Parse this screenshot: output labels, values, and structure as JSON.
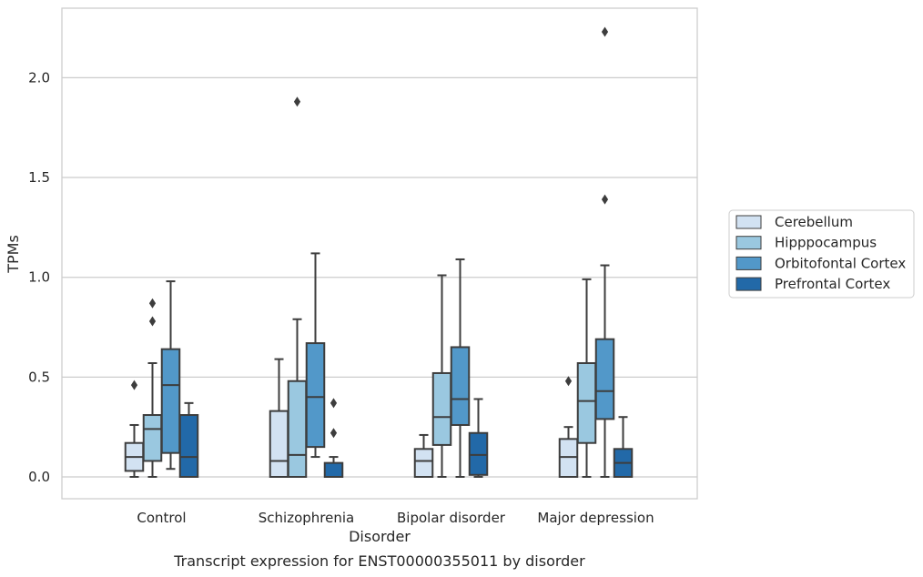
{
  "chart_data": {
    "type": "box",
    "title": "",
    "caption": "Transcript expression for ENST00000355011 by disorder",
    "xlabel": "Disorder",
    "ylabel": "TPMs",
    "ylim": [
      -0.11,
      2.34
    ],
    "yticks": [
      0.0,
      0.5,
      1.0,
      1.5,
      2.0
    ],
    "ytick_labels": [
      "0.0",
      "0.5",
      "1.0",
      "1.5",
      "2.0"
    ],
    "grid": "horizontal",
    "legend_position": "right",
    "categories": [
      "Control",
      "Schizophrenia",
      "Bipolar disorder",
      "Major depression"
    ],
    "series": [
      {
        "name": "Cerebellum",
        "color": "#d2e2f2",
        "boxes": [
          {
            "whisker_low": 0.0,
            "q1": 0.03,
            "median": 0.1,
            "q3": 0.17,
            "whisker_high": 0.26,
            "outliers": [
              0.46
            ]
          },
          {
            "whisker_low": 0.0,
            "q1": 0.0,
            "median": 0.08,
            "q3": 0.33,
            "whisker_high": 0.59,
            "outliers": []
          },
          {
            "whisker_low": 0.0,
            "q1": 0.0,
            "median": 0.08,
            "q3": 0.14,
            "whisker_high": 0.21,
            "outliers": []
          },
          {
            "whisker_low": 0.0,
            "q1": 0.0,
            "median": 0.1,
            "q3": 0.19,
            "whisker_high": 0.25,
            "outliers": [
              0.48
            ]
          }
        ]
      },
      {
        "name": "Hipppocampus",
        "color": "#9ac8e0",
        "boxes": [
          {
            "whisker_low": 0.0,
            "q1": 0.08,
            "median": 0.24,
            "q3": 0.31,
            "whisker_high": 0.57,
            "outliers": [
              0.78,
              0.87
            ]
          },
          {
            "whisker_low": 0.0,
            "q1": 0.0,
            "median": 0.11,
            "q3": 0.48,
            "whisker_high": 0.79,
            "outliers": [
              1.88
            ]
          },
          {
            "whisker_low": 0.0,
            "q1": 0.16,
            "median": 0.3,
            "q3": 0.52,
            "whisker_high": 1.01,
            "outliers": []
          },
          {
            "whisker_low": 0.0,
            "q1": 0.17,
            "median": 0.38,
            "q3": 0.57,
            "whisker_high": 0.99,
            "outliers": []
          }
        ]
      },
      {
        "name": "Orbitofontal Cortex",
        "color": "#5298c9",
        "boxes": [
          {
            "whisker_low": 0.04,
            "q1": 0.12,
            "median": 0.46,
            "q3": 0.64,
            "whisker_high": 0.98,
            "outliers": []
          },
          {
            "whisker_low": 0.1,
            "q1": 0.15,
            "median": 0.4,
            "q3": 0.67,
            "whisker_high": 1.12,
            "outliers": []
          },
          {
            "whisker_low": 0.0,
            "q1": 0.26,
            "median": 0.39,
            "q3": 0.65,
            "whisker_high": 1.09,
            "outliers": []
          },
          {
            "whisker_low": 0.0,
            "q1": 0.29,
            "median": 0.43,
            "q3": 0.69,
            "whisker_high": 1.06,
            "outliers": [
              1.39,
              2.23
            ]
          }
        ]
      },
      {
        "name": "Prefrontal Cortex",
        "color": "#2269a8",
        "boxes": [
          {
            "whisker_low": 0.0,
            "q1": 0.0,
            "median": 0.1,
            "q3": 0.31,
            "whisker_high": 0.37,
            "outliers": []
          },
          {
            "whisker_low": 0.0,
            "q1": 0.0,
            "median": 0.0,
            "q3": 0.07,
            "whisker_high": 0.1,
            "outliers": [
              0.22,
              0.37
            ]
          },
          {
            "whisker_low": 0.0,
            "q1": 0.01,
            "median": 0.11,
            "q3": 0.22,
            "whisker_high": 0.39,
            "outliers": []
          },
          {
            "whisker_low": 0.0,
            "q1": 0.0,
            "median": 0.07,
            "q3": 0.14,
            "whisker_high": 0.3,
            "outliers": []
          }
        ]
      }
    ]
  }
}
